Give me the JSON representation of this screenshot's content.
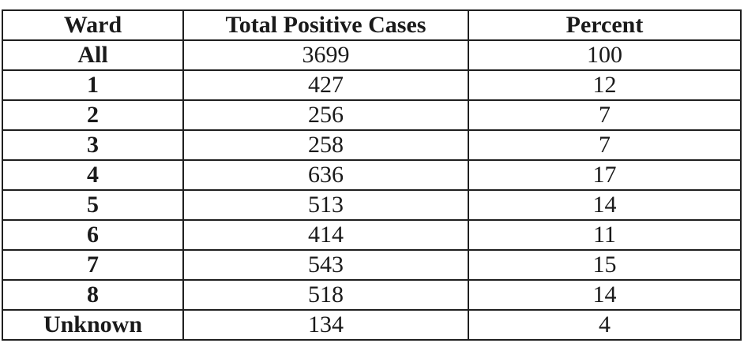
{
  "table": {
    "headers": [
      "Ward",
      "Total Positive Cases",
      "Percent"
    ],
    "rows": [
      [
        "All",
        "3699",
        "100"
      ],
      [
        "1",
        "427",
        "12"
      ],
      [
        "2",
        "256",
        "7"
      ],
      [
        "3",
        "258",
        "7"
      ],
      [
        "4",
        "636",
        "17"
      ],
      [
        "5",
        "513",
        "14"
      ],
      [
        "6",
        "414",
        "11"
      ],
      [
        "7",
        "543",
        "15"
      ],
      [
        "8",
        "518",
        "14"
      ],
      [
        "Unknown",
        "134",
        "4"
      ]
    ]
  }
}
